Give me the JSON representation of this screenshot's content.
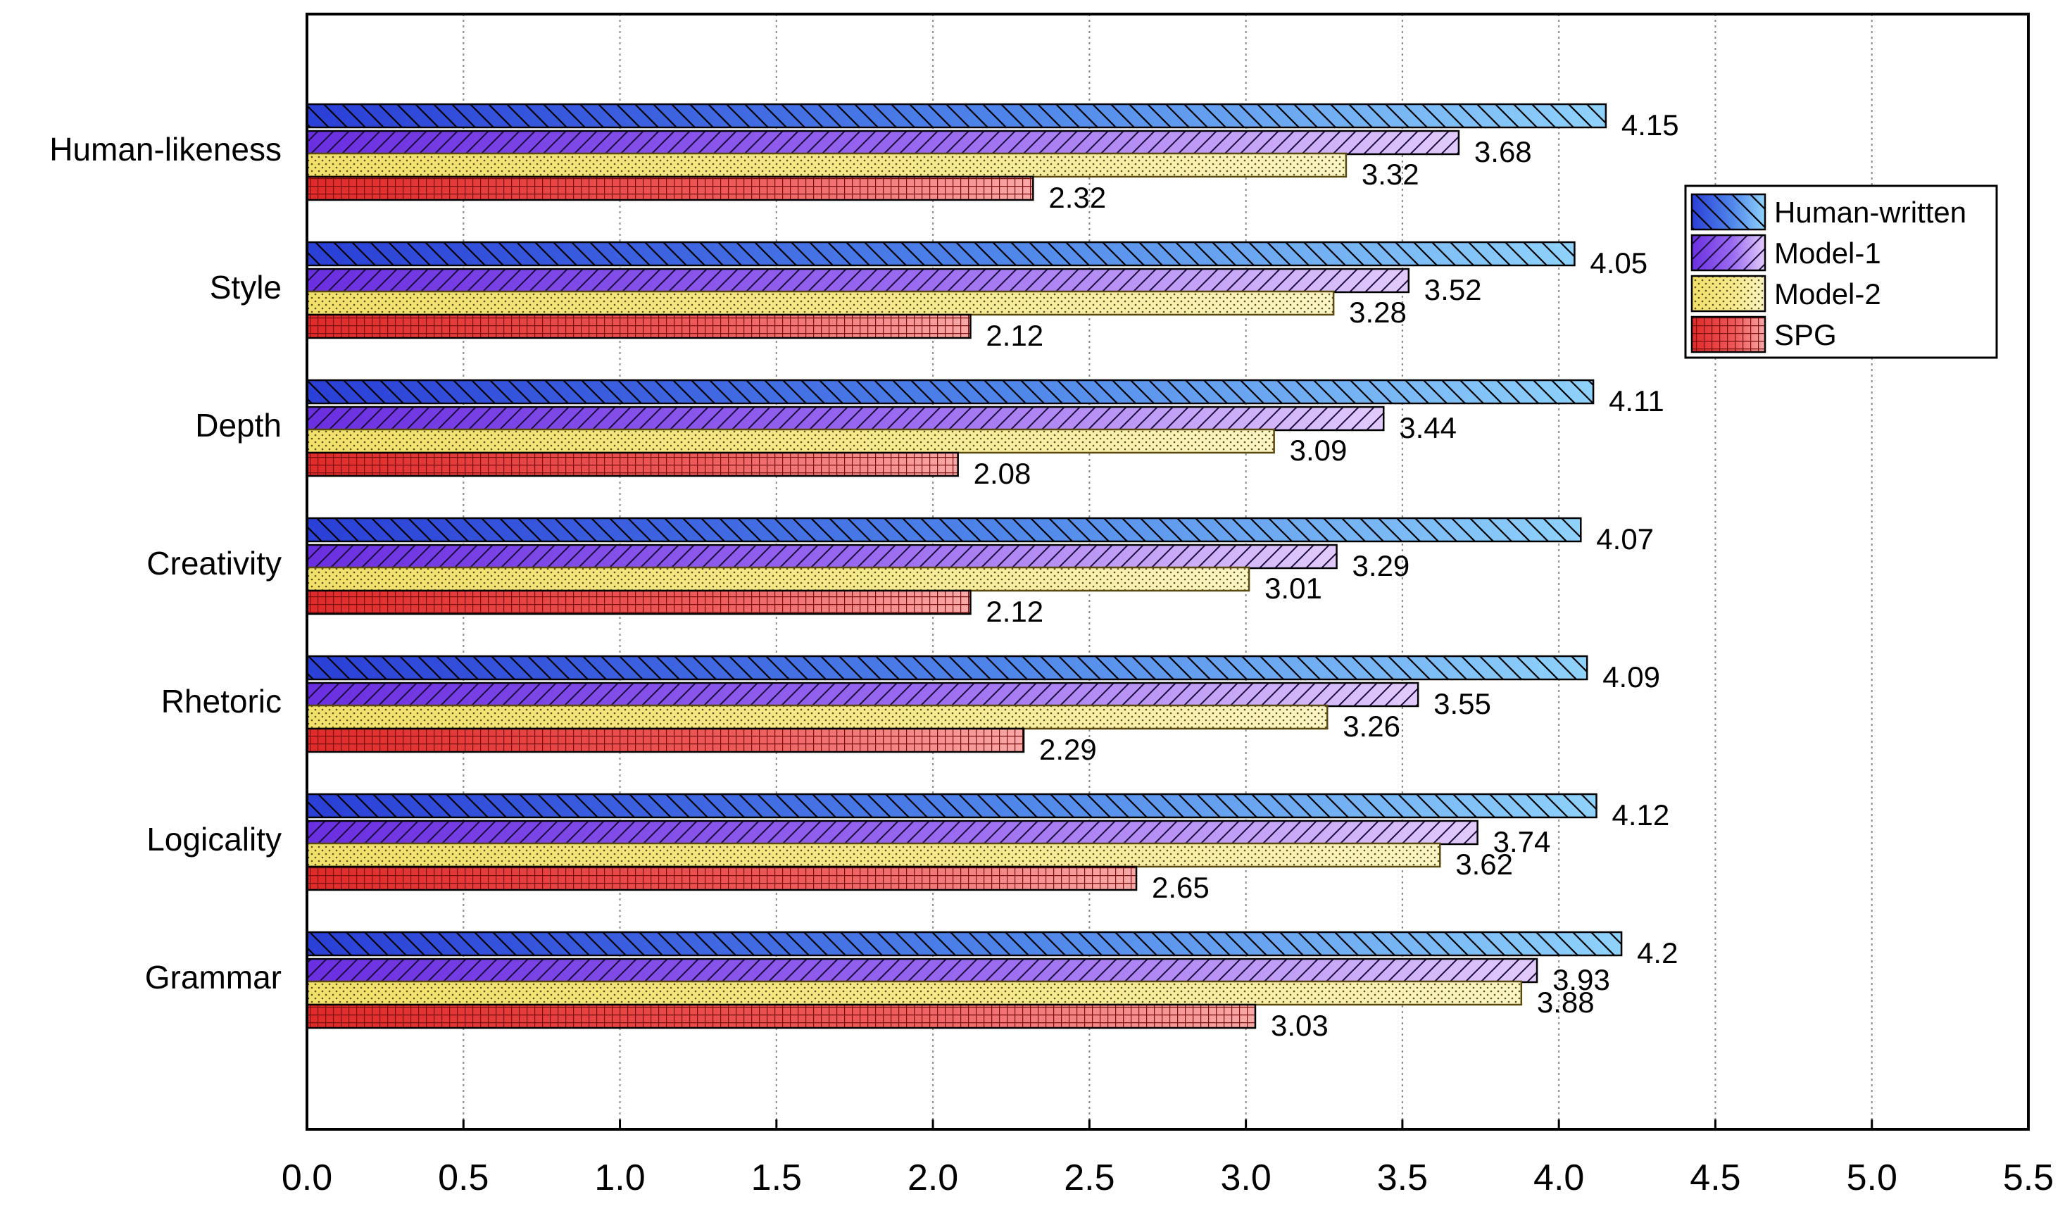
{
  "chart_data": {
    "type": "bar",
    "orientation": "horizontal",
    "title": "",
    "xlabel": "",
    "ylabel": "",
    "xlim": [
      0.0,
      5.5
    ],
    "x_ticks": [
      "0.0",
      "0.5",
      "1.0",
      "1.5",
      "2.0",
      "2.5",
      "3.0",
      "3.5",
      "4.0",
      "4.5",
      "5.0",
      "5.5"
    ],
    "grid": "vertical-dotted",
    "legend_position": "upper-right",
    "categories": [
      "Human-likeness",
      "Style",
      "Depth",
      "Creativity",
      "Rhetoric",
      "Logicality",
      "Grammar"
    ],
    "series": [
      {
        "name": "Human-written",
        "color": "#3f6fe0",
        "pattern": "backslash-hatch",
        "values": [
          4.15,
          4.05,
          4.11,
          4.07,
          4.09,
          4.12,
          4.2
        ],
        "labels": [
          "4.15",
          "4.05",
          "4.11",
          "4.07",
          "4.09",
          "4.12",
          "4.2"
        ]
      },
      {
        "name": "Model-1",
        "color": "#8a4fe8",
        "pattern": "slash-hatch",
        "values": [
          3.68,
          3.52,
          3.44,
          3.29,
          3.55,
          3.74,
          3.93
        ],
        "labels": [
          "3.68",
          "3.52",
          "3.44",
          "3.29",
          "3.55",
          "3.74",
          "3.93"
        ]
      },
      {
        "name": "Model-2",
        "color": "#f0e27a",
        "pattern": "dots",
        "values": [
          3.32,
          3.28,
          3.09,
          3.01,
          3.26,
          3.62,
          3.88
        ],
        "labels": [
          "3.32",
          "3.28",
          "3.09",
          "3.01",
          "3.26",
          "3.62",
          "3.88"
        ]
      },
      {
        "name": "SPG",
        "color": "#e83a3a",
        "pattern": "grid",
        "values": [
          2.32,
          2.12,
          2.08,
          2.12,
          2.29,
          2.65,
          3.03
        ],
        "labels": [
          "2.32",
          "2.12",
          "2.08",
          "2.12",
          "2.29",
          "2.65",
          "3.03"
        ]
      }
    ]
  }
}
